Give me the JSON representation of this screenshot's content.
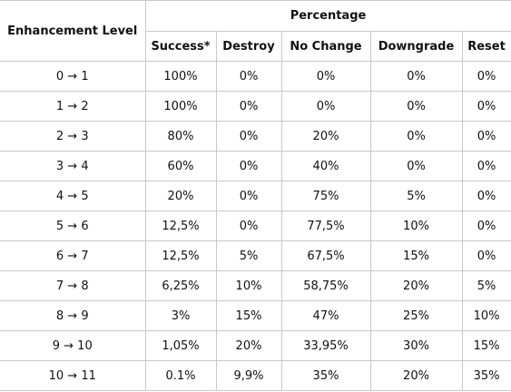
{
  "table": {
    "row_header": "Enhancement Level",
    "group_header": "Percentage",
    "columns": [
      "Success*",
      "Destroy",
      "No Change",
      "Downgrade",
      "Reset"
    ],
    "rows": [
      {
        "level": "0 → 1",
        "values": [
          "100%",
          "0%",
          "0%",
          "0%",
          "0%"
        ]
      },
      {
        "level": "1 → 2",
        "values": [
          "100%",
          "0%",
          "0%",
          "0%",
          "0%"
        ]
      },
      {
        "level": "2 → 3",
        "values": [
          "80%",
          "0%",
          "20%",
          "0%",
          "0%"
        ]
      },
      {
        "level": "3 → 4",
        "values": [
          "60%",
          "0%",
          "40%",
          "0%",
          "0%"
        ]
      },
      {
        "level": "4 → 5",
        "values": [
          "20%",
          "0%",
          "75%",
          "5%",
          "0%"
        ]
      },
      {
        "level": "5 → 6",
        "values": [
          "12,5%",
          "0%",
          "77,5%",
          "10%",
          "0%"
        ]
      },
      {
        "level": "6 → 7",
        "values": [
          "12,5%",
          "5%",
          "67,5%",
          "15%",
          "0%"
        ]
      },
      {
        "level": "7 → 8",
        "values": [
          "6,25%",
          "10%",
          "58,75%",
          "20%",
          "5%"
        ]
      },
      {
        "level": "8 → 9",
        "values": [
          "3%",
          "15%",
          "47%",
          "25%",
          "10%"
        ]
      },
      {
        "level": "9 → 10",
        "values": [
          "1,05%",
          "20%",
          "33,95%",
          "30%",
          "15%"
        ]
      },
      {
        "level": "10 → 11",
        "values": [
          "0.1%",
          "9,9%",
          "35%",
          "20%",
          "35%"
        ]
      }
    ]
  }
}
